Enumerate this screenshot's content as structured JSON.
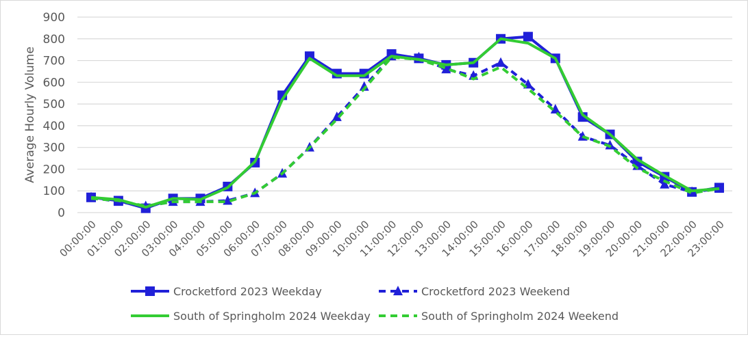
{
  "chart_data": {
    "type": "line",
    "title": "",
    "xlabel": "",
    "ylabel": "Average Hourly Volume",
    "ylim": [
      0,
      900
    ],
    "yticks": [
      0,
      100,
      200,
      300,
      400,
      500,
      600,
      700,
      800,
      900
    ],
    "grid": true,
    "legend_placement": "bottom",
    "categories": [
      "00:00:00",
      "01:00:00",
      "02:00:00",
      "03:00:00",
      "04:00:00",
      "05:00:00",
      "06:00:00",
      "07:00:00",
      "08:00:00",
      "09:00:00",
      "10:00:00",
      "11:00:00",
      "12:00:00",
      "13:00:00",
      "14:00:00",
      "15:00:00",
      "16:00:00",
      "17:00:00",
      "18:00:00",
      "19:00:00",
      "20:00:00",
      "21:00:00",
      "22:00:00",
      "23:00:00"
    ],
    "series": [
      {
        "name": "Crocketford 2023 Weekday",
        "color": "#2020d8",
        "dash": false,
        "marker": "square",
        "values": [
          70,
          55,
          20,
          65,
          65,
          120,
          230,
          540,
          720,
          640,
          640,
          730,
          710,
          680,
          690,
          800,
          810,
          710,
          440,
          360,
          235,
          165,
          95,
          115
        ]
      },
      {
        "name": "Crocketford 2023 Weekend",
        "color": "#2020d8",
        "dash": true,
        "marker": "triangle",
        "values": [
          70,
          50,
          30,
          50,
          50,
          55,
          90,
          180,
          300,
          440,
          580,
          720,
          715,
          660,
          630,
          690,
          590,
          475,
          350,
          310,
          215,
          130,
          95,
          110
        ]
      },
      {
        "name": "South of Springholm 2024 Weekday",
        "color": "#33cc33",
        "dash": false,
        "marker": "none",
        "values": [
          70,
          60,
          25,
          65,
          60,
          115,
          235,
          520,
          710,
          630,
          630,
          720,
          705,
          680,
          690,
          800,
          780,
          710,
          450,
          360,
          245,
          170,
          100,
          110
        ]
      },
      {
        "name": "South of Springholm 2024 Weekend",
        "color": "#33cc33",
        "dash": true,
        "marker": "none",
        "values": [
          65,
          55,
          30,
          50,
          50,
          50,
          90,
          180,
          300,
          430,
          570,
          715,
          705,
          665,
          615,
          670,
          570,
          465,
          350,
          305,
          205,
          145,
          90,
          110
        ]
      }
    ]
  }
}
